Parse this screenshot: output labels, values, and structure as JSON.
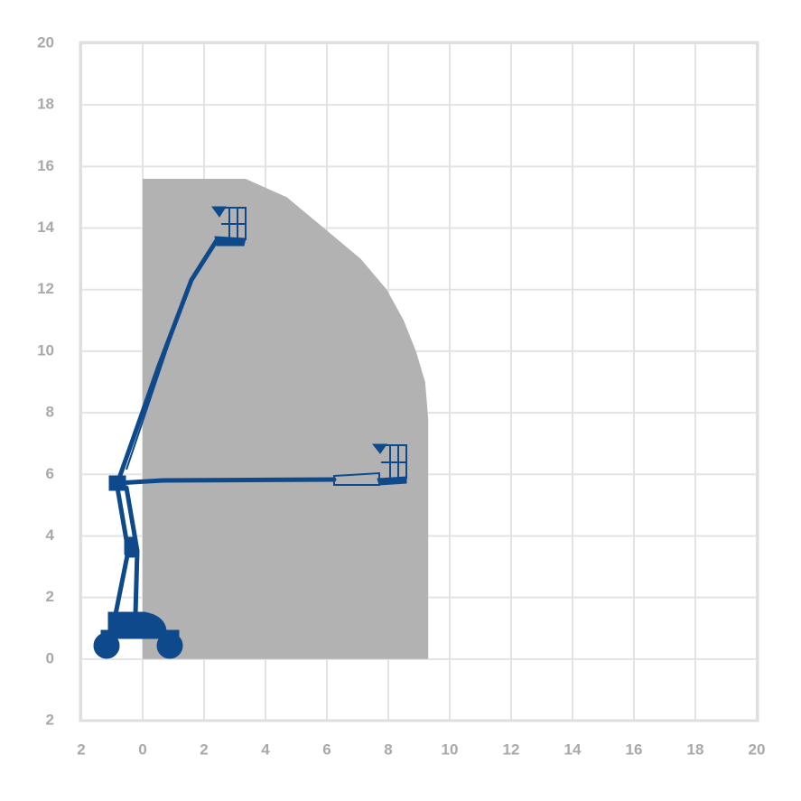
{
  "chart_data": {
    "type": "area",
    "x": [
      0,
      0,
      3.35,
      4.7,
      5.9,
      7.1,
      7.95,
      8.5,
      8.9,
      9.2,
      9.3,
      9.3
    ],
    "values": [
      0,
      15.6,
      15.6,
      15,
      14,
      13,
      12,
      11,
      10,
      9,
      7.8,
      0
    ],
    "color": "#b2b2b2",
    "xlim": [
      -2,
      20
    ],
    "xticks": [
      {
        "value": -2,
        "label": "2"
      },
      0,
      2,
      4,
      6,
      8,
      10,
      12,
      14,
      16,
      18,
      20
    ],
    "ylim": [
      -2,
      20
    ],
    "yticks": [
      {
        "value": -2,
        "label": "2"
      },
      0,
      2,
      4,
      6,
      8,
      10,
      12,
      14,
      16,
      18,
      20
    ],
    "grid": true
  }
}
